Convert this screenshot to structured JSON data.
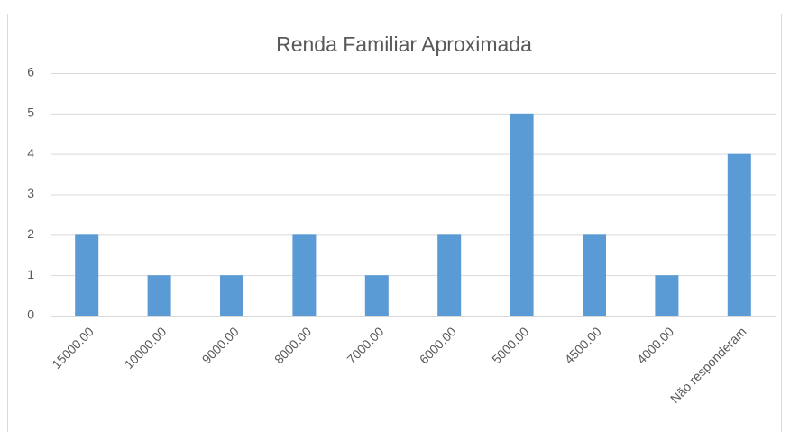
{
  "chart_data": {
    "type": "bar",
    "title": "Renda Familiar Aproximada",
    "categories": [
      "15000.00",
      "10000.00",
      "9000.00",
      "8000.00",
      "7000.00",
      "6000.00",
      "5000.00",
      "4500.00",
      "4000.00",
      "Não responderam"
    ],
    "values": [
      2,
      1,
      1,
      2,
      1,
      2,
      5,
      2,
      1,
      4
    ],
    "color": "#5b9bd5",
    "ylim": [
      0,
      6
    ],
    "yticks": [
      0,
      1,
      2,
      3,
      4,
      5,
      6
    ],
    "grid": true
  }
}
